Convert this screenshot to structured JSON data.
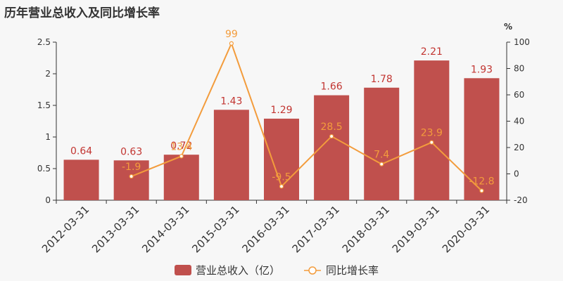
{
  "title": "历年营业总收入及同比增长率",
  "colors": {
    "bar": "#c0504d",
    "bar_label": "#c23531",
    "line": "#f39c3c",
    "axis": "#333333"
  },
  "chart_data": {
    "type": "bar",
    "categories": [
      "2012-03-31",
      "2013-03-31",
      "2014-03-31",
      "2015-03-31",
      "2016-03-31",
      "2017-03-31",
      "2018-03-31",
      "2019-03-31",
      "2020-03-31"
    ],
    "series": [
      {
        "name": "营业总收入（亿）",
        "type": "bar",
        "axis": "left",
        "values": [
          0.64,
          0.63,
          0.72,
          1.43,
          1.29,
          1.66,
          1.78,
          2.21,
          1.93
        ],
        "labels": [
          "0.64",
          "0.63",
          "0.72",
          "1.43",
          "1.29",
          "1.66",
          "1.78",
          "2.21",
          "1.93"
        ]
      },
      {
        "name": "同比增长率",
        "type": "line",
        "axis": "right",
        "values": [
          null,
          -1.9,
          13.4,
          99,
          -9.5,
          28.5,
          7.4,
          23.9,
          -12.8
        ],
        "labels": [
          "",
          "-1.9",
          "13.4",
          "99",
          "-9.5",
          "28.5",
          "7.4",
          "23.9",
          "-12.8"
        ]
      }
    ],
    "y_left": {
      "min": 0,
      "max": 2.5,
      "ticks": [
        "0",
        "0.5",
        "1",
        "1.5",
        "2",
        "2.5"
      ]
    },
    "y_right": {
      "min": -20,
      "max": 100,
      "ticks": [
        "-20",
        "0",
        "20",
        "40",
        "60",
        "80",
        "100"
      ],
      "unit": "%"
    },
    "legend": {
      "position": "bottom",
      "items": [
        "营业总收入（亿）",
        "同比增长率"
      ]
    },
    "grid": false
  }
}
